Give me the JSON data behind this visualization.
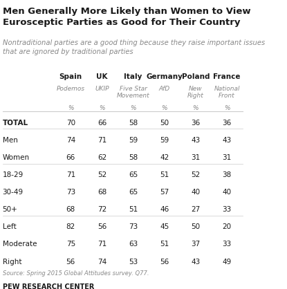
{
  "title": "Men Generally More Likely than Women to View\nEurosceptic Parties as Good for Their Country",
  "subtitle": "Nontraditional parties are a good thing because they raise important issues\nthat are ignored by traditional parties",
  "source": "Source: Spring 2015 Global Attitudes survey. Q77.",
  "footer": "PEW RESEARCH CENTER",
  "columns": [
    "Spain",
    "UK",
    "Italy",
    "Germany",
    "Poland",
    "France"
  ],
  "col_sub1": [
    "Podemos",
    "UKIP",
    "Five Star\nMovement",
    "AfD",
    "New\nRight",
    "National\nFront"
  ],
  "col_sub2": [
    "%",
    "%",
    "%",
    "%",
    "%",
    "%"
  ],
  "rows": [
    {
      "label": "TOTAL",
      "bold": true,
      "values": [
        70,
        66,
        58,
        50,
        36,
        36
      ]
    },
    {
      "label": "Men",
      "bold": false,
      "values": [
        74,
        71,
        59,
        59,
        43,
        43
      ]
    },
    {
      "label": "Women",
      "bold": false,
      "values": [
        66,
        62,
        58,
        42,
        31,
        31
      ]
    },
    {
      "label": "18-29",
      "bold": false,
      "values": [
        71,
        52,
        65,
        51,
        52,
        38
      ]
    },
    {
      "label": "30-49",
      "bold": false,
      "values": [
        73,
        68,
        65,
        57,
        40,
        40
      ]
    },
    {
      "label": "50+",
      "bold": false,
      "values": [
        68,
        72,
        51,
        46,
        27,
        33
      ]
    },
    {
      "label": "Left",
      "bold": false,
      "values": [
        82,
        56,
        73,
        45,
        50,
        20
      ]
    },
    {
      "label": "Moderate",
      "bold": false,
      "values": [
        75,
        71,
        63,
        51,
        37,
        33
      ]
    },
    {
      "label": "Right",
      "bold": false,
      "values": [
        56,
        74,
        53,
        56,
        43,
        49
      ]
    }
  ],
  "bg_color": "#ffffff",
  "title_color": "#1a1a1a",
  "subtitle_color": "#888888",
  "header_color": "#1a1a1a",
  "sub_header_color": "#888888",
  "data_color": "#1a1a1a",
  "source_color": "#888888",
  "footer_color": "#1a1a1a",
  "divider_color": "#cccccc",
  "bold_row_color": "#1a1a1a"
}
